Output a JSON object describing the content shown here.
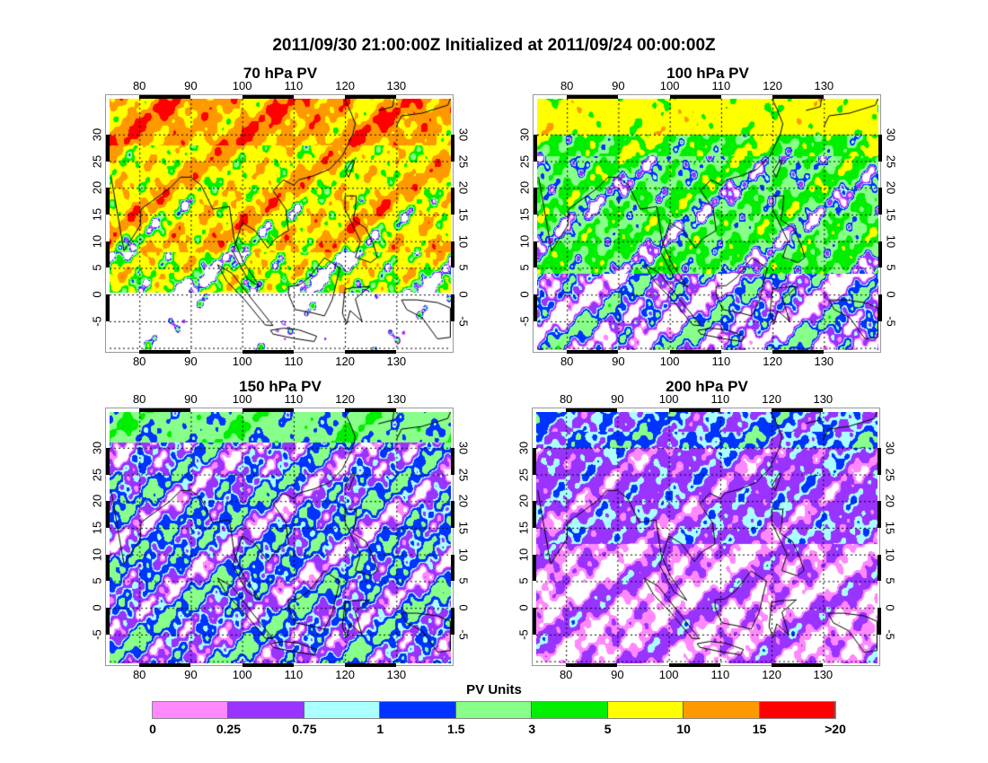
{
  "title": "2011/09/30 21:00:00Z Initialized at 2011/09/24 00:00:00Z",
  "chart_data": {
    "type": "heatmap",
    "title": "2011/09/30 21:00:00Z Initialized at 2011/09/24 00:00:00Z",
    "lon_range": [
      74.2,
      140.6
    ],
    "lat_range": [
      -10.4,
      36.7
    ],
    "lon_ticks": [
      "80",
      "90",
      "100",
      "110",
      "120",
      "130"
    ],
    "lon_tick_values": [
      80,
      90,
      100,
      110,
      120,
      130
    ],
    "lat_ticks": [
      "30",
      "25",
      "20",
      "15",
      "10",
      "5",
      "0",
      "-5"
    ],
    "lat_tick_values": [
      30,
      25,
      20,
      15,
      10,
      5,
      0,
      -5
    ],
    "grid": true,
    "panels": [
      {
        "title": "70 hPa PV",
        "level": 70
      },
      {
        "title": "100 hPa PV",
        "level": 100
      },
      {
        "title": "150 hPa PV",
        "level": 150
      },
      {
        "title": "200 hPa PV",
        "level": 200
      }
    ],
    "colorbar": {
      "title": "PV Units",
      "labels": [
        "0",
        "0.25",
        "0.75",
        "1",
        "1.5",
        "3",
        "5",
        "10",
        "15",
        ">20"
      ],
      "levels": [
        0,
        0.25,
        0.75,
        1,
        1.5,
        3,
        5,
        10,
        15,
        20
      ],
      "colors": [
        "#ff88ff",
        "#9933ff",
        "#aaffff",
        "#0033ff",
        "#88ff88",
        "#00ee00",
        "#ffff00",
        "#ff9900",
        "#ff0000"
      ]
    }
  }
}
